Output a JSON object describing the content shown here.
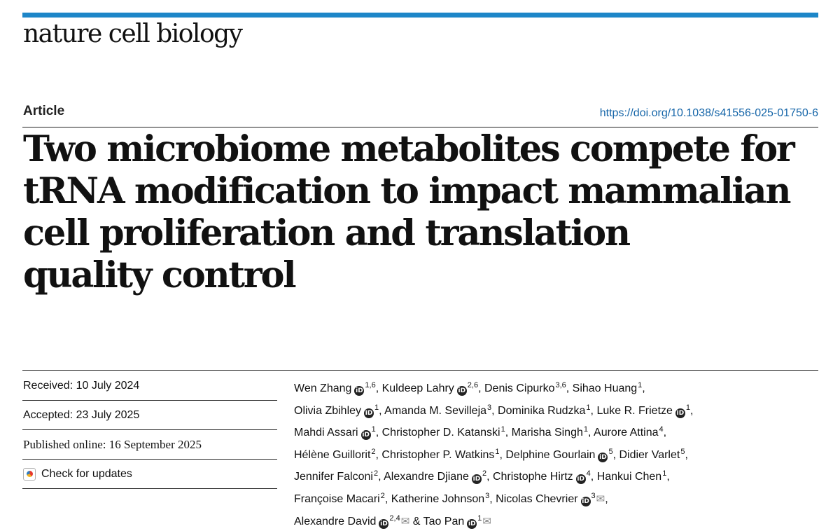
{
  "journal": {
    "name": "nature cell biology"
  },
  "article": {
    "type": "Article",
    "doi": "https://doi.org/10.1038/s41556-025-01750-6",
    "title_lines": [
      "Two microbiome metabolites compete for",
      "tRNA modification to impact mammalian",
      "cell proliferation and translation",
      "quality control"
    ]
  },
  "dates": {
    "received": "Received: 10 July 2024",
    "accepted": "Accepted: 23 July 2025",
    "published": "Published online: 16 September 2025"
  },
  "check_updates": "Check for updates",
  "authors": [
    {
      "name": "Wen Zhang",
      "orcid": true,
      "aff": "1,6",
      "sep": ", "
    },
    {
      "name": "Kuldeep Lahry",
      "orcid": true,
      "aff": "2,6",
      "sep": ", "
    },
    {
      "name": "Denis Cipurko",
      "orcid": false,
      "aff": "3,6",
      "sep": ", "
    },
    {
      "name": "Sihao Huang",
      "orcid": false,
      "aff": "1",
      "sep": ","
    },
    {
      "name": "Olivia Zbihley",
      "orcid": true,
      "aff": "1",
      "sep": ", "
    },
    {
      "name": "Amanda M. Sevilleja",
      "orcid": false,
      "aff": "3",
      "sep": ", "
    },
    {
      "name": "Dominika Rudzka",
      "orcid": false,
      "aff": "1",
      "sep": ", "
    },
    {
      "name": "Luke R. Frietze",
      "orcid": true,
      "aff": "1",
      "sep": ","
    },
    {
      "name": "Mahdi Assari",
      "orcid": true,
      "aff": "1",
      "sep": ", "
    },
    {
      "name": "Christopher D. Katanski",
      "orcid": false,
      "aff": "1",
      "sep": ", "
    },
    {
      "name": "Marisha Singh",
      "orcid": false,
      "aff": "1",
      "sep": ", "
    },
    {
      "name": "Aurore Attina",
      "orcid": false,
      "aff": "4",
      "sep": ","
    },
    {
      "name": "Hélène Guillorit",
      "orcid": false,
      "aff": "2",
      "sep": ", "
    },
    {
      "name": "Christopher P. Watkins",
      "orcid": false,
      "aff": "1",
      "sep": ", "
    },
    {
      "name": "Delphine Gourlain",
      "orcid": true,
      "aff": "5",
      "sep": ", "
    },
    {
      "name": "Didier Varlet",
      "orcid": false,
      "aff": "5",
      "sep": ","
    },
    {
      "name": "Jennifer Falconi",
      "orcid": false,
      "aff": "2",
      "sep": ", "
    },
    {
      "name": "Alexandre Djiane",
      "orcid": true,
      "aff": "2",
      "sep": ", "
    },
    {
      "name": "Christophe Hirtz",
      "orcid": true,
      "aff": "4",
      "sep": ", "
    },
    {
      "name": "Hankui Chen",
      "orcid": false,
      "aff": "1",
      "sep": ","
    },
    {
      "name": "Françoise Macari",
      "orcid": false,
      "aff": "2",
      "sep": ", "
    },
    {
      "name": "Katherine Johnson",
      "orcid": false,
      "aff": "3",
      "sep": ", "
    },
    {
      "name": "Nicolas Chevrier",
      "orcid": true,
      "aff": "3",
      "mail": true,
      "sep": ","
    },
    {
      "name": "Alexandre David",
      "orcid": true,
      "aff": "2,4",
      "mail": true,
      "sep": " & "
    },
    {
      "name": "Tao Pan",
      "orcid": true,
      "aff": "1",
      "mail": true,
      "sep": ""
    }
  ],
  "author_lines": [
    4,
    4,
    4,
    4,
    4,
    3,
    2
  ],
  "icons": {
    "orcid": "orcid-icon",
    "mail": "envelope-icon",
    "updates": "check-for-updates-icon"
  },
  "colors": {
    "accent_bar": "#1d86c8",
    "link": "#1565a8"
  }
}
